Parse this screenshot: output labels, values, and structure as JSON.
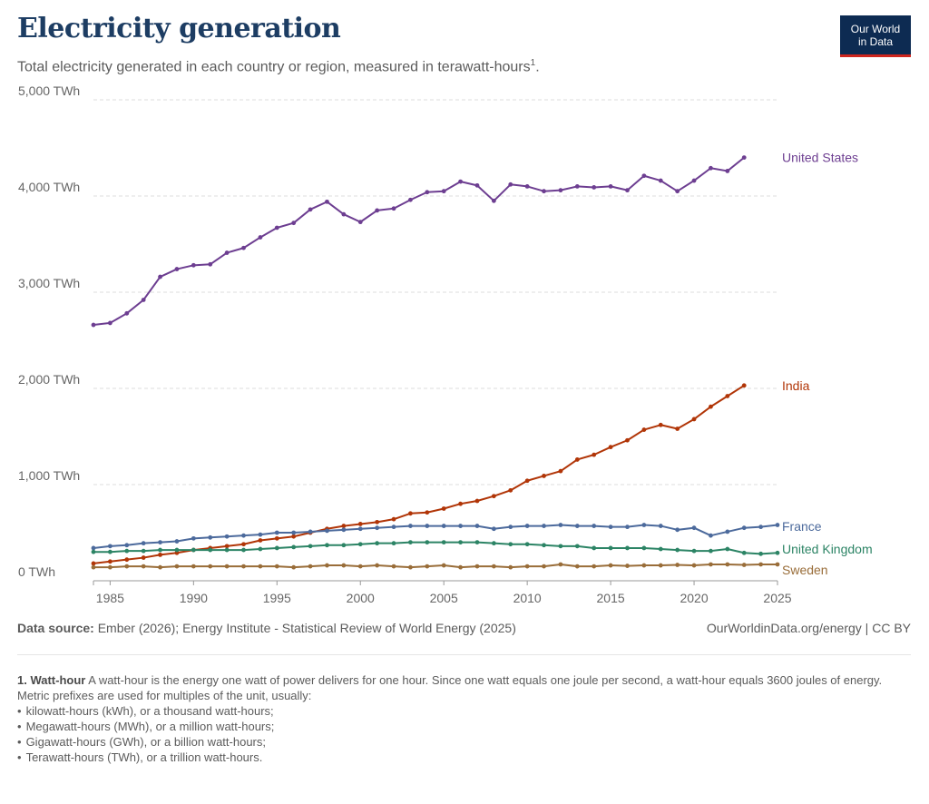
{
  "header": {
    "title": "Electricity generation",
    "subtitle": "Total electricity generated in each country or region, measured in terawatt-hours",
    "subtitle_note": "1",
    "logo_line1": "Our World",
    "logo_line2": "in Data"
  },
  "footer": {
    "source_label": "Data source:",
    "source_text": "Ember (2026); Energy Institute - Statistical Review of World Energy (2025)",
    "license": "OurWorldinData.org/energy | CC BY"
  },
  "notes": {
    "term": "1. Watt-hour",
    "definition": "A watt-hour is the energy one watt of power delivers for one hour. Since one watt equals one joule per second, a watt-hour equals 3600 joules of energy.",
    "intro": "Metric prefixes are used for multiples of the unit, usually:",
    "items": [
      "kilowatt-hours (kWh), or a thousand watt-hours;",
      "Megawatt-hours (MWh), or a million watt-hours;",
      "Gigawatt-hours (GWh), or a billion watt-hours;",
      "Terawatt-hours (TWh), or a trillion watt-hours."
    ]
  },
  "colors": {
    "united_states": "#6d3e91",
    "india": "#b13507",
    "france": "#4c6a9c",
    "united_kingdom": "#2c8465",
    "sweden": "#996d39",
    "grid": "#dddddd",
    "axis_text": "#666666"
  },
  "chart_data": {
    "type": "line",
    "title": "Electricity generation",
    "ylabel": "",
    "xlabel": "",
    "xlim": [
      1984,
      2025
    ],
    "ylim": [
      0,
      5000
    ],
    "x_ticks": [
      1985,
      1990,
      1995,
      2000,
      2005,
      2010,
      2015,
      2020,
      2025
    ],
    "x_tick_labels": [
      "1985",
      "1990",
      "1995",
      "2000",
      "2005",
      "2010",
      "2015",
      "2020",
      "2025"
    ],
    "y_ticks": [
      0,
      1000,
      2000,
      3000,
      4000,
      5000
    ],
    "y_tick_labels": [
      "0 TWh",
      "1,000 TWh",
      "2,000 TWh",
      "3,000 TWh",
      "4,000 TWh",
      "5,000 TWh"
    ],
    "grid": true,
    "legend": "right, inline labels at line ends",
    "x": [
      1984,
      1985,
      1986,
      1987,
      1988,
      1989,
      1990,
      1991,
      1992,
      1993,
      1994,
      1995,
      1996,
      1997,
      1998,
      1999,
      2000,
      2001,
      2002,
      2003,
      2004,
      2005,
      2006,
      2007,
      2008,
      2009,
      2010,
      2011,
      2012,
      2013,
      2014,
      2015,
      2016,
      2017,
      2018,
      2019,
      2020,
      2021,
      2022,
      2023,
      2024,
      2025
    ],
    "series": [
      {
        "name": "United States",
        "color_key": "united_states",
        "values": [
          2660,
          2680,
          2780,
          2920,
          3160,
          3240,
          3280,
          3290,
          3410,
          3460,
          3570,
          3670,
          3720,
          3860,
          3940,
          3810,
          3730,
          3850,
          3870,
          3960,
          4040,
          4050,
          4150,
          4110,
          3950,
          4120,
          4100,
          4050,
          4060,
          4100,
          4090,
          4100,
          4060,
          4210,
          4160,
          4050,
          4160,
          4290,
          4260,
          4400,
          null,
          null
        ]
      },
      {
        "name": "India",
        "color_key": "india",
        "values": [
          180,
          200,
          220,
          240,
          270,
          290,
          320,
          340,
          360,
          380,
          420,
          440,
          460,
          500,
          540,
          570,
          590,
          610,
          640,
          700,
          710,
          750,
          800,
          830,
          880,
          940,
          1040,
          1090,
          1140,
          1260,
          1310,
          1390,
          1460,
          1570,
          1620,
          1580,
          1680,
          1810,
          1920,
          2030,
          null,
          null
        ]
      },
      {
        "name": "France",
        "color_key": "france",
        "values": [
          340,
          360,
          370,
          390,
          400,
          410,
          440,
          450,
          460,
          470,
          480,
          500,
          500,
          510,
          520,
          530,
          540,
          550,
          560,
          570,
          570,
          570,
          570,
          570,
          540,
          560,
          570,
          570,
          580,
          570,
          570,
          560,
          560,
          580,
          570,
          530,
          550,
          470,
          510,
          550,
          560,
          580
        ]
      },
      {
        "name": "United Kingdom",
        "color_key": "united_kingdom",
        "values": [
          300,
          300,
          310,
          310,
          320,
          320,
          320,
          320,
          320,
          320,
          330,
          340,
          350,
          360,
          370,
          370,
          380,
          390,
          390,
          400,
          400,
          400,
          400,
          400,
          390,
          380,
          380,
          370,
          360,
          360,
          340,
          340,
          340,
          340,
          330,
          320,
          310,
          310,
          330,
          290,
          280,
          290
        ]
      },
      {
        "name": "Sweden",
        "color_key": "sweden",
        "values": [
          140,
          140,
          150,
          150,
          140,
          150,
          150,
          150,
          150,
          150,
          150,
          150,
          140,
          150,
          160,
          160,
          150,
          160,
          150,
          140,
          150,
          160,
          140,
          150,
          150,
          140,
          150,
          150,
          170,
          150,
          150,
          160,
          155,
          160,
          160,
          165,
          160,
          170,
          170,
          165,
          170,
          170
        ]
      }
    ]
  }
}
